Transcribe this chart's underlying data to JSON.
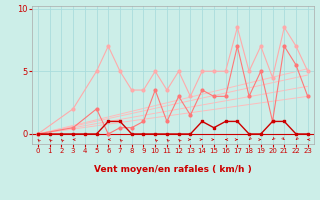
{
  "xlabel": "Vent moyen/en rafales ( km/h )",
  "bg_color": "#cceee8",
  "grid_color": "#aadddd",
  "xlim": [
    -0.5,
    23.5
  ],
  "ylim": [
    -0.8,
    10.2
  ],
  "yticks": [
    0,
    5,
    10
  ],
  "xticks": [
    0,
    1,
    2,
    3,
    4,
    5,
    6,
    7,
    8,
    9,
    10,
    11,
    12,
    13,
    14,
    15,
    16,
    17,
    18,
    19,
    20,
    21,
    22,
    23
  ],
  "series_light": {
    "x": [
      0,
      3,
      5,
      6,
      7,
      8,
      9,
      10,
      11,
      12,
      13,
      14,
      15,
      16,
      17,
      18,
      19,
      20,
      21,
      22,
      23
    ],
    "y": [
      0,
      2,
      5,
      7,
      5,
      3.5,
      3.5,
      5,
      3.5,
      5,
      3,
      5,
      5,
      5,
      8.5,
      5,
      7,
      4.5,
      8.5,
      7,
      5
    ]
  },
  "series_medium": {
    "x": [
      0,
      3,
      5,
      6,
      7,
      8,
      9,
      10,
      11,
      12,
      13,
      14,
      15,
      16,
      17,
      18,
      19,
      20,
      21,
      22,
      23
    ],
    "y": [
      0,
      0.5,
      2,
      0,
      0.5,
      0.5,
      1,
      3.5,
      1,
      3,
      1.5,
      3.5,
      3,
      3,
      7,
      3,
      5,
      1,
      7,
      5.5,
      3
    ]
  },
  "trend_lines": [
    {
      "x": [
        0,
        23
      ],
      "y": [
        0,
        3.0
      ]
    },
    {
      "x": [
        0,
        23
      ],
      "y": [
        0,
        3.8
      ]
    },
    {
      "x": [
        0,
        23
      ],
      "y": [
        0,
        4.7
      ]
    },
    {
      "x": [
        0,
        23
      ],
      "y": [
        0,
        5.2
      ]
    }
  ],
  "series_dark_mean": {
    "x": [
      0,
      1,
      2,
      3,
      4,
      5,
      6,
      7,
      8,
      9,
      10,
      11,
      12,
      13,
      14,
      15,
      16,
      17,
      18,
      19,
      20,
      21,
      22,
      23
    ],
    "y": [
      0,
      0,
      0,
      0,
      0,
      0,
      1,
      1,
      0,
      0,
      0,
      0,
      0,
      0,
      1,
      0.5,
      1,
      1,
      0,
      0,
      1,
      1,
      0,
      0
    ]
  },
  "color_light": "#ffaaaa",
  "color_medium": "#ff7777",
  "color_dark": "#cc0000",
  "color_trend": "#ffbbbb",
  "arrow_color": "#cc0000",
  "arrows": {
    "x": [
      0,
      1,
      2,
      3,
      6,
      7,
      10,
      11,
      12,
      13,
      14,
      15,
      16,
      17,
      18,
      19,
      20,
      21,
      22,
      23
    ],
    "angles": [
      225,
      225,
      225,
      270,
      270,
      225,
      225,
      225,
      225,
      90,
      90,
      90,
      270,
      90,
      315,
      90,
      315,
      45,
      315,
      270
    ]
  }
}
